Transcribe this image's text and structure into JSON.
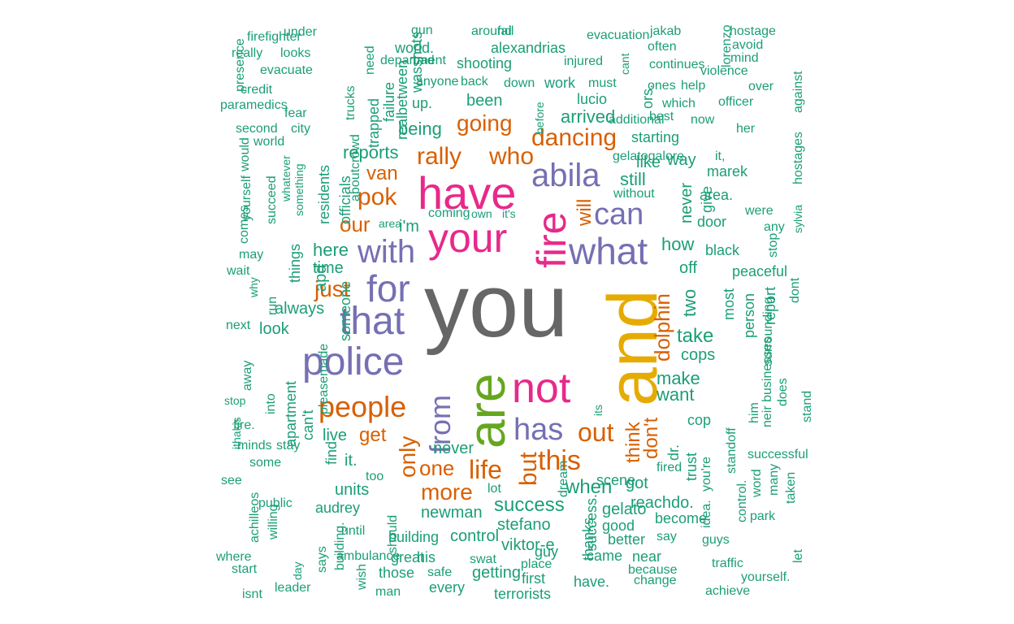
{
  "word_cloud": {
    "palette": {
      "grey": "#666666",
      "magenta": "#e7298a",
      "purple": "#7570b3",
      "yellow": "#e6ab02",
      "green": "#66a61e",
      "orange": "#d95f02",
      "teal": "#1b9e77"
    },
    "words": [
      "you",
      "and",
      "are",
      "have",
      "your",
      "fire",
      "not",
      "police",
      "that",
      "for",
      "what",
      "abila",
      "with",
      "has",
      "can",
      "people",
      "from",
      "this",
      "life",
      "out",
      "but",
      "only",
      "pok",
      "rally",
      "who",
      "going",
      "dancing",
      "one",
      "more",
      "dolphin",
      "will",
      "just",
      "our",
      "van",
      "get",
      "think",
      "don't",
      "success",
      "when",
      "take",
      "make",
      "want",
      "arrived",
      "being",
      "reports",
      "here",
      "time",
      "how",
      "off",
      "two",
      "cops",
      "still",
      "like",
      "way",
      "never",
      "give",
      "never",
      "it.",
      "units",
      "newman",
      "building",
      "control",
      "great",
      "his",
      "getting",
      "those",
      "every",
      "terrorists",
      "stefano",
      "viktor-e",
      "guy",
      "first",
      "place",
      "have.",
      "change",
      "success.",
      "came",
      "good",
      "better",
      "near",
      "because",
      "reachdo.",
      "gelato",
      "got",
      "become",
      "say",
      "fired",
      "trust",
      "cop",
      "dr.",
      "scene",
      "its",
      "thanks",
      "swat",
      "safe",
      "man",
      "dream",
      "lot",
      "too",
      "live",
      "find",
      "can't",
      "apartment",
      "pleasemade",
      "into",
      "someone",
      "look",
      "always",
      "apd",
      "things",
      "residents",
      "officials",
      "aboutcrowd",
      "city",
      "fear",
      "trucks",
      "trapped",
      "failure",
      "realbetween",
      "wasshots",
      "need",
      "gun",
      "around",
      "fail",
      "world.",
      "alexandrias",
      "evacuation",
      "jakab",
      "often",
      "hostage",
      "lorenzo",
      "avoid",
      "mind",
      "violence",
      "continues",
      "injured",
      "cant",
      "ors.",
      "shooting",
      "department",
      "bad",
      "under",
      "firefighter",
      "really",
      "looks",
      "evacuate",
      "presence",
      "credit",
      "paramedics",
      "anyone",
      "back",
      "down",
      "work",
      "must",
      "lucio",
      "ones",
      "help",
      "over",
      "which",
      "officer",
      "against",
      "up.",
      "been",
      "additional",
      "best",
      "now",
      "before",
      "her",
      "starting",
      "gelatogalore",
      "it,",
      "marek",
      "hostages",
      "area.",
      "without",
      "were",
      "door",
      "sylvia",
      "any",
      "stop",
      "black",
      "dont",
      "peaceful",
      "most",
      "person",
      "report",
      "does",
      "surrounding",
      "stand",
      "neir businesses",
      "him",
      "standoff",
      "successful",
      "many",
      "taken",
      "word",
      "control.",
      "idea.",
      "you're",
      "park",
      "let",
      "guys",
      "traffic",
      "yourself.",
      "achieve",
      "second",
      "world",
      "would",
      "yourself",
      "succeed",
      "whatever",
      "something",
      "comes",
      "may",
      "wait",
      "why",
      "run",
      "next",
      "away",
      "stop",
      "ithakis",
      "fire.",
      "minds",
      "stay",
      "some",
      "see",
      "public",
      "achilleos",
      "willing",
      "audrey",
      "until",
      "should",
      "day",
      "says",
      "building.",
      "ambulance",
      "where",
      "start",
      "isnt",
      "leader",
      "wish",
      "coming",
      "own",
      "area",
      "i'm",
      "it's",
      "all",
      "life,"
    ]
  }
}
